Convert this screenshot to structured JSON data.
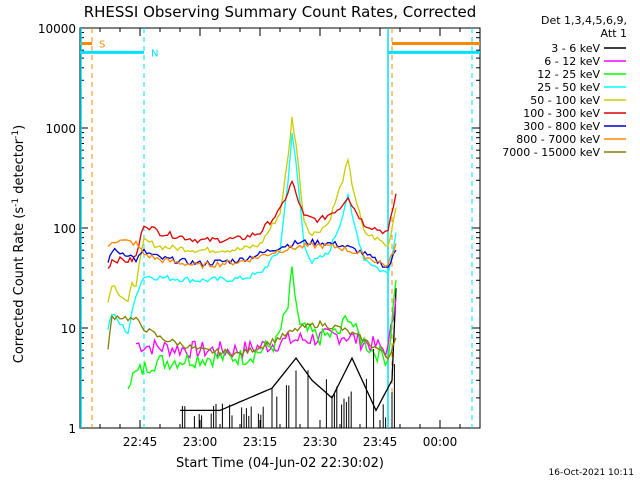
{
  "chart_data": {
    "type": "line",
    "title": "RHESSI Observing Summary Count Rates, Corrected",
    "xlabel": "Start Time (04-Jun-02 22:30:02)",
    "ylabel": "Corrected Count Rate (s⁻¹ detector⁻¹)",
    "ylabel_main": "Corrected Count Rate (s",
    "ylabel_sup1": "-1",
    "ylabel_mid": " detector",
    "ylabel_sup2": "-1",
    "ylabel_end": ")",
    "y_scale": "log",
    "ylim": [
      1,
      10000
    ],
    "xlim": [
      "22:30",
      "00:10"
    ],
    "x_ticks": [
      "22:45",
      "23:00",
      "23:15",
      "23:30",
      "23:45",
      "00:00"
    ],
    "y_ticks": [
      "1",
      "10",
      "100",
      "1000",
      "10000"
    ],
    "legend_header": [
      "Det 1,3,4,5,6,9,",
      "Att 1"
    ],
    "legend_position": "right",
    "series": [
      {
        "name": "3 - 6 keV",
        "color": "#000000",
        "points": [
          [
            "22:55",
            1.5
          ],
          [
            "23:05",
            1.5
          ],
          [
            "23:18",
            2.5
          ],
          [
            "23:24",
            5
          ],
          [
            "23:28",
            3
          ],
          [
            "23:33",
            2
          ],
          [
            "23:38",
            5
          ],
          [
            "23:44",
            1.5
          ],
          [
            "23:48",
            3
          ],
          [
            "23:49",
            25
          ]
        ]
      },
      {
        "name": "6 - 12 keV",
        "color": "#ff00ff",
        "points": [
          [
            "22:44",
            7
          ],
          [
            "22:48",
            6.5
          ],
          [
            "23:00",
            6
          ],
          [
            "23:10",
            6
          ],
          [
            "23:15",
            6.5
          ],
          [
            "23:22",
            7.5
          ],
          [
            "23:30",
            8
          ],
          [
            "23:36",
            8.5
          ],
          [
            "23:42",
            7
          ],
          [
            "23:47",
            6
          ],
          [
            "23:49",
            20
          ]
        ]
      },
      {
        "name": "12 - 25 keV",
        "color": "#00ff00",
        "points": [
          [
            "22:42",
            3
          ],
          [
            "22:48",
            4.5
          ],
          [
            "23:00",
            5
          ],
          [
            "23:12",
            5.2
          ],
          [
            "23:19",
            7
          ],
          [
            "23:22",
            16
          ],
          [
            "23:23",
            35
          ],
          [
            "23:25",
            10
          ],
          [
            "23:30",
            8
          ],
          [
            "23:35",
            9
          ],
          [
            "23:37",
            14
          ],
          [
            "23:39",
            9
          ],
          [
            "23:43",
            6
          ],
          [
            "23:47",
            5
          ],
          [
            "23:49",
            30
          ]
        ]
      },
      {
        "name": "25 - 50 keV",
        "color": "#00ffff",
        "points": [
          [
            "22:37",
            10
          ],
          [
            "22:38",
            14
          ],
          [
            "22:40",
            11
          ],
          [
            "22:42",
            9
          ],
          [
            "22:43",
            14
          ],
          [
            "22:44",
            22
          ],
          [
            "22:46",
            33
          ],
          [
            "22:50",
            32
          ],
          [
            "23:00",
            30
          ],
          [
            "23:10",
            31
          ],
          [
            "23:15",
            35
          ],
          [
            "23:20",
            60
          ],
          [
            "23:22",
            300
          ],
          [
            "23:23",
            850
          ],
          [
            "23:24",
            450
          ],
          [
            "23:26",
            70
          ],
          [
            "23:28",
            45
          ],
          [
            "23:32",
            55
          ],
          [
            "23:35",
            110
          ],
          [
            "23:37",
            220
          ],
          [
            "23:38",
            130
          ],
          [
            "23:41",
            50
          ],
          [
            "23:45",
            38
          ],
          [
            "23:47",
            35
          ],
          [
            "23:49",
            90
          ]
        ]
      },
      {
        "name": "50 - 100 keV",
        "color": "#cccc00",
        "points": [
          [
            "22:37",
            18
          ],
          [
            "22:38",
            28
          ],
          [
            "22:40",
            22
          ],
          [
            "22:42",
            18
          ],
          [
            "22:43",
            27
          ],
          [
            "22:44",
            28
          ],
          [
            "22:46",
            75
          ],
          [
            "22:50",
            65
          ],
          [
            "23:00",
            60
          ],
          [
            "23:10",
            61
          ],
          [
            "23:15",
            68
          ],
          [
            "23:20",
            140
          ],
          [
            "23:22",
            500
          ],
          [
            "23:23",
            1250
          ],
          [
            "23:24",
            700
          ],
          [
            "23:26",
            120
          ],
          [
            "23:28",
            85
          ],
          [
            "23:32",
            110
          ],
          [
            "23:35",
            250
          ],
          [
            "23:37",
            460
          ],
          [
            "23:38",
            280
          ],
          [
            "23:41",
            90
          ],
          [
            "23:45",
            75
          ],
          [
            "23:47",
            65
          ],
          [
            "23:49",
            160
          ]
        ]
      },
      {
        "name": "100 - 300 keV",
        "color": "#dd0000",
        "points": [
          [
            "22:37",
            40
          ],
          [
            "22:38",
            48
          ],
          [
            "22:40",
            48
          ],
          [
            "22:42",
            47
          ],
          [
            "22:43",
            48
          ],
          [
            "22:44",
            52
          ],
          [
            "22:46",
            110
          ],
          [
            "22:50",
            90
          ],
          [
            "23:00",
            75
          ],
          [
            "23:10",
            78
          ],
          [
            "23:15",
            90
          ],
          [
            "23:20",
            150
          ],
          [
            "23:22",
            230
          ],
          [
            "23:23",
            290
          ],
          [
            "23:24",
            220
          ],
          [
            "23:26",
            130
          ],
          [
            "23:30",
            120
          ],
          [
            "23:35",
            160
          ],
          [
            "23:37",
            210
          ],
          [
            "23:38",
            170
          ],
          [
            "23:41",
            110
          ],
          [
            "23:45",
            95
          ],
          [
            "23:47",
            90
          ],
          [
            "23:49",
            220
          ]
        ]
      },
      {
        "name": "300 - 800 keV",
        "color": "#0000cc",
        "points": [
          [
            "22:37",
            45
          ],
          [
            "22:38",
            60
          ],
          [
            "22:40",
            57
          ],
          [
            "22:42",
            55
          ],
          [
            "22:44",
            48
          ],
          [
            "22:46",
            58
          ],
          [
            "22:50",
            50
          ],
          [
            "23:00",
            44
          ],
          [
            "23:10",
            48
          ],
          [
            "23:15",
            55
          ],
          [
            "23:20",
            65
          ],
          [
            "23:25",
            72
          ],
          [
            "23:30",
            72
          ],
          [
            "23:35",
            68
          ],
          [
            "23:40",
            58
          ],
          [
            "23:45",
            45
          ],
          [
            "23:47",
            40
          ],
          [
            "23:49",
            60
          ]
        ]
      },
      {
        "name": "800 - 7000 keV",
        "color": "#ff8800",
        "points": [
          [
            "22:37",
            65
          ],
          [
            "22:38",
            75
          ],
          [
            "22:40",
            74
          ],
          [
            "22:42",
            73
          ],
          [
            "22:44",
            70
          ],
          [
            "22:46",
            55
          ],
          [
            "22:50",
            48
          ],
          [
            "23:00",
            42
          ],
          [
            "23:10",
            46
          ],
          [
            "23:15",
            52
          ],
          [
            "23:20",
            60
          ],
          [
            "23:25",
            65
          ],
          [
            "23:30",
            67
          ],
          [
            "23:35",
            64
          ],
          [
            "23:40",
            55
          ],
          [
            "23:45",
            45
          ],
          [
            "23:47",
            42
          ],
          [
            "23:49",
            70
          ]
        ]
      },
      {
        "name": "7000 - 15000 keV",
        "color": "#808000",
        "points": [
          [
            "22:37",
            6
          ],
          [
            "22:38",
            13
          ],
          [
            "22:40",
            13
          ],
          [
            "22:42",
            12.5
          ],
          [
            "22:44",
            12
          ],
          [
            "22:46",
            10
          ],
          [
            "22:50",
            8
          ],
          [
            "23:00",
            6
          ],
          [
            "23:10",
            5.5
          ],
          [
            "23:15",
            6.5
          ],
          [
            "23:20",
            8
          ],
          [
            "23:25",
            10
          ],
          [
            "23:30",
            11
          ],
          [
            "23:35",
            10
          ],
          [
            "23:40",
            8
          ],
          [
            "23:45",
            6
          ],
          [
            "23:47",
            5
          ],
          [
            "23:49",
            8
          ]
        ]
      }
    ],
    "markers": [
      {
        "label": "S",
        "color": "#ff8800",
        "level": 7000,
        "spans": [
          [
            "22:30",
            "22:33"
          ],
          [
            "23:48",
            "00:10"
          ]
        ],
        "dashed_times": [
          "22:33",
          "23:48",
          "00:08"
        ]
      },
      {
        "label": "N",
        "color": "#00e0ff",
        "level": 5700,
        "spans": [
          [
            "22:30",
            "22:46"
          ],
          [
            "23:47",
            "00:10"
          ]
        ],
        "dashed_times": [
          "22:46",
          "23:47",
          "00:08"
        ]
      }
    ],
    "solid_edges": [
      {
        "color": "#00e0ff",
        "times": [
          "22:30",
          "23:47"
        ]
      }
    ],
    "timestamp": "16-Oct-2021 10:11"
  }
}
